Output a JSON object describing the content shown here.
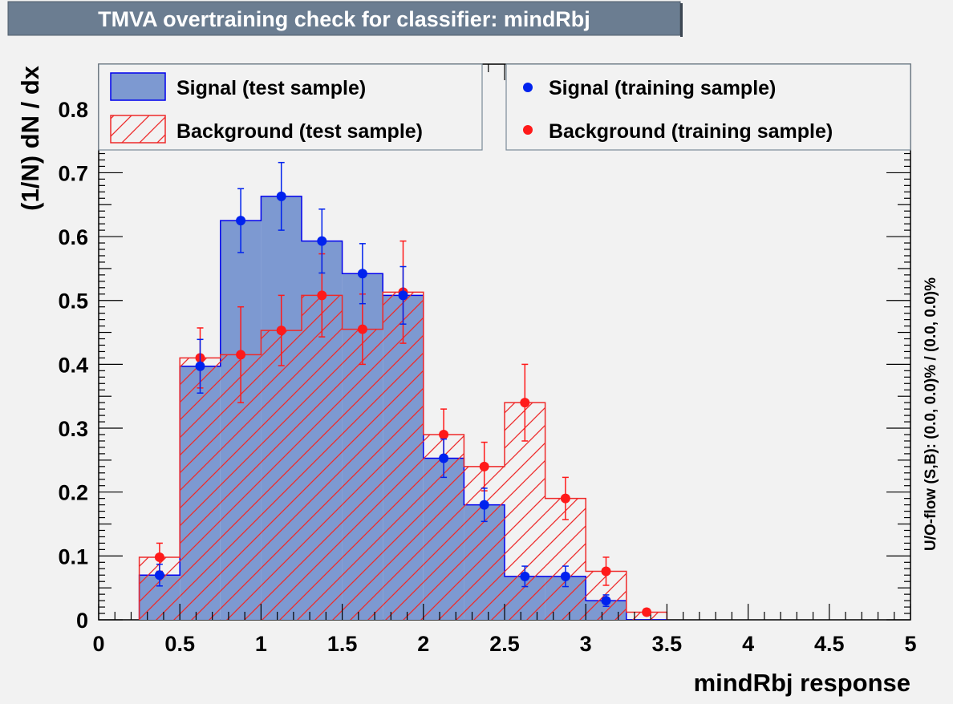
{
  "header": {
    "title": "TMVA overtraining check for classifier: mindRbj"
  },
  "colors": {
    "background": "#f2f2f2",
    "title_box": "#6b7d91",
    "signal_fill": "#7d99d1",
    "signal_line": "#0000ee",
    "background_line": "#ee2a2a",
    "signal_marker": "#0022ee",
    "background_marker": "#ff1a1a"
  },
  "chart_data": {
    "type": "bar",
    "title": "TMVA overtraining check for classifier: mindRbj",
    "xlabel": "mindRbj response",
    "ylabel": "(1/N) dN / dx",
    "side_label": "U/O-flow (S,B): (0.0, 0.0)% / (0.0, 0.0)%",
    "xlim": [
      0,
      5
    ],
    "ylim": [
      0,
      0.87
    ],
    "x_ticks": [
      "0",
      "0.5",
      "1",
      "1.5",
      "2",
      "2.5",
      "3",
      "3.5",
      "4",
      "4.5",
      "5"
    ],
    "y_ticks": [
      "0",
      "0.1",
      "0.2",
      "0.3",
      "0.4",
      "0.5",
      "0.6",
      "0.7",
      "0.8"
    ],
    "legend_position": "top",
    "bin_edges": [
      0.25,
      0.5,
      0.75,
      1.0,
      1.25,
      1.5,
      1.75,
      2.0,
      2.25,
      2.5,
      2.75,
      3.0,
      3.25,
      3.5
    ],
    "series": [
      {
        "name": "Signal (test sample)",
        "kind": "hist-filled",
        "values": [
          0.07,
          0.397,
          0.625,
          0.663,
          0.593,
          0.542,
          0.508,
          0.253,
          0.18,
          0.068,
          0.068,
          0.03,
          0.0
        ]
      },
      {
        "name": "Background (test sample)",
        "kind": "hist-hatched",
        "values": [
          0.098,
          0.41,
          0.415,
          0.453,
          0.508,
          0.455,
          0.513,
          0.29,
          0.24,
          0.34,
          0.19,
          0.076,
          0.012
        ]
      },
      {
        "name": "Signal (training sample)",
        "kind": "points",
        "x": [
          0.375,
          0.625,
          0.875,
          1.125,
          1.375,
          1.625,
          1.875,
          2.125,
          2.375,
          2.625,
          2.875,
          3.125
        ],
        "y": [
          0.07,
          0.397,
          0.625,
          0.663,
          0.593,
          0.542,
          0.508,
          0.253,
          0.18,
          0.068,
          0.068,
          0.03
        ],
        "err": [
          0.017,
          0.042,
          0.05,
          0.053,
          0.05,
          0.047,
          0.045,
          0.03,
          0.026,
          0.016,
          0.016,
          0.009
        ]
      },
      {
        "name": "Background (training sample)",
        "kind": "points",
        "x": [
          0.375,
          0.625,
          0.875,
          1.125,
          1.375,
          1.625,
          1.875,
          2.125,
          2.375,
          2.625,
          2.875,
          3.125,
          3.375
        ],
        "y": [
          0.098,
          0.41,
          0.415,
          0.453,
          0.508,
          0.455,
          0.513,
          0.29,
          0.24,
          0.34,
          0.19,
          0.076,
          0.012
        ],
        "err": [
          0.022,
          0.047,
          0.075,
          0.055,
          0.065,
          0.055,
          0.08,
          0.04,
          0.038,
          0.06,
          0.033,
          0.022,
          0.005
        ]
      }
    ]
  }
}
